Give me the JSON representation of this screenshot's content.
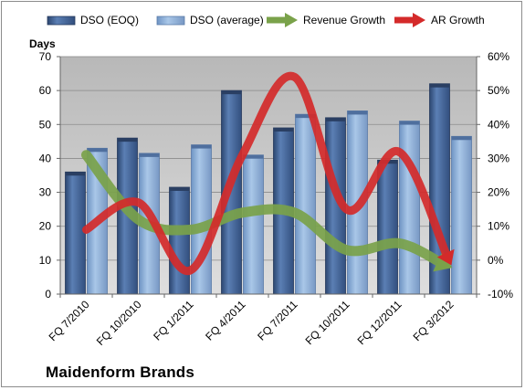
{
  "company": "Maidenform Brands",
  "colors": {
    "dso_eoq": "#4a6a9c",
    "dso_average": "#8fb4dc",
    "revenue_growth": "#7aa24a",
    "ar_growth": "#d42a2a",
    "plot_background": "#c4c4c4"
  },
  "chart_data": {
    "type": "bar",
    "title": "Maidenform Brands",
    "categories": [
      "FQ 7/2010",
      "FQ 10/2010",
      "FQ 1/2011",
      "FQ 4/2011",
      "FQ 7/2011",
      "FQ 10/2011",
      "FQ 12/2011",
      "FQ 3/2012"
    ],
    "ylabel": "Days",
    "ylim": [
      0,
      70
    ],
    "yticks": [
      0,
      10,
      20,
      30,
      40,
      50,
      60,
      70
    ],
    "y2lim": [
      -0.1,
      0.6
    ],
    "y2ticks": [
      "-10%",
      "0%",
      "10%",
      "20%",
      "30%",
      "40%",
      "50%",
      "60%"
    ],
    "y2ticks_values": [
      -0.1,
      0.0,
      0.1,
      0.2,
      0.3,
      0.4,
      0.5,
      0.6
    ],
    "grid": true,
    "legend": "top",
    "series": [
      {
        "name": "DSO (EOQ)",
        "type": "bar",
        "axis": "left",
        "values": [
          36,
          46,
          31.5,
          60,
          49,
          52,
          39.5,
          62
        ]
      },
      {
        "name": "DSO (average)",
        "type": "bar",
        "axis": "left",
        "values": [
          43,
          41.5,
          44,
          41,
          53,
          54,
          51,
          46.5
        ]
      },
      {
        "name": "Revenue Growth",
        "type": "line",
        "axis": "right",
        "values": [
          0.31,
          0.12,
          0.09,
          0.14,
          0.14,
          0.03,
          0.05,
          -0.02
        ]
      },
      {
        "name": "AR Growth",
        "type": "line",
        "axis": "right",
        "values": [
          0.09,
          0.17,
          -0.03,
          0.31,
          0.54,
          0.15,
          0.32,
          -0.01
        ]
      }
    ]
  }
}
